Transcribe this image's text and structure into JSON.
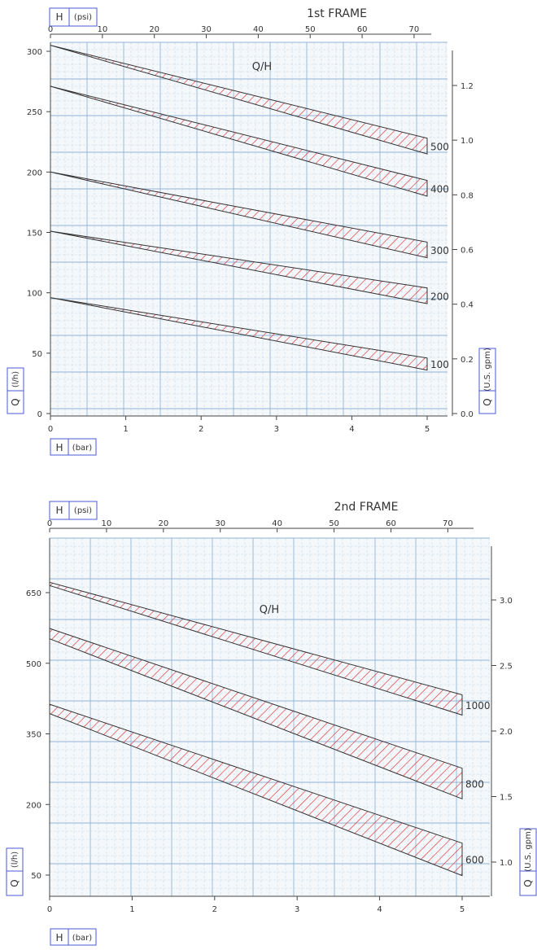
{
  "chart_data": [
    {
      "type": "line",
      "title": "1st FRAME",
      "annotation": "Q/H",
      "x_bar_label": "H",
      "x_bar_unit": "(bar)",
      "x_psi_label": "H",
      "x_psi_unit": "(psi)",
      "y_left_label": "Q",
      "y_left_unit": "(l/h)",
      "y_right_label": "Q",
      "y_right_unit": "(U.S. gpm)",
      "x_bar_ticks": [
        "0",
        "1",
        "2",
        "3",
        "4",
        "5"
      ],
      "x_psi_ticks": [
        "0",
        "10",
        "20",
        "30",
        "40",
        "50",
        "60",
        "70"
      ],
      "y_left_ticks": [
        "0",
        "50",
        "100",
        "150",
        "200",
        "250",
        "300"
      ],
      "y_right_ticks": [
        "0.0",
        "0.2",
        "0.4",
        "0.6",
        "0.8",
        "1.0",
        "1.2"
      ],
      "xlim": [
        0,
        5
      ],
      "ylim": [
        0,
        300
      ],
      "grid": true,
      "series": [
        {
          "name": "500",
          "upper": [
            [
              0,
              305
            ],
            [
              5,
              228
            ]
          ],
          "lower": [
            [
              0,
              305
            ],
            [
              5,
              215
            ]
          ]
        },
        {
          "name": "400",
          "upper": [
            [
              0,
              271
            ],
            [
              5,
              193
            ]
          ],
          "lower": [
            [
              0,
              271
            ],
            [
              5,
              180
            ]
          ]
        },
        {
          "name": "300",
          "upper": [
            [
              0,
              200
            ],
            [
              5,
              142
            ]
          ],
          "lower": [
            [
              0,
              200
            ],
            [
              5,
              129
            ]
          ]
        },
        {
          "name": "200",
          "upper": [
            [
              0,
              151
            ],
            [
              5,
              104
            ]
          ],
          "lower": [
            [
              0,
              151
            ],
            [
              5,
              91
            ]
          ]
        },
        {
          "name": "100",
          "upper": [
            [
              0,
              96
            ],
            [
              5,
              46
            ]
          ],
          "lower": [
            [
              0,
              96
            ],
            [
              5,
              36
            ]
          ]
        }
      ]
    },
    {
      "type": "line",
      "title": "2nd FRAME",
      "annotation": "Q/H",
      "x_bar_label": "H",
      "x_bar_unit": "(bar)",
      "x_psi_label": "H",
      "x_psi_unit": "(psi)",
      "y_left_label": "Q",
      "y_left_unit": "(l/h)",
      "y_right_label": "Q",
      "y_right_unit": "(U.S. gpm)",
      "x_bar_ticks": [
        "0",
        "1",
        "2",
        "3",
        "4",
        "5"
      ],
      "x_psi_ticks": [
        "0",
        "10",
        "20",
        "30",
        "40",
        "50",
        "60",
        "70"
      ],
      "y_left_ticks": [
        "50",
        "200",
        "350",
        "500",
        "650"
      ],
      "y_right_ticks": [
        "1.0",
        "1.5",
        "2.0",
        "2.5",
        "3.0"
      ],
      "xlim": [
        0,
        5
      ],
      "ylim": [
        50,
        650
      ],
      "grid": true,
      "series": [
        {
          "name": "1000",
          "upper": [
            [
              0,
              672
            ],
            [
              5,
              433
            ]
          ],
          "lower": [
            [
              0,
              665
            ],
            [
              5,
              390
            ]
          ]
        },
        {
          "name": "800",
          "upper": [
            [
              0,
              574
            ],
            [
              5,
              277
            ]
          ],
          "lower": [
            [
              0,
              552
            ],
            [
              5,
              212
            ]
          ]
        },
        {
          "name": "600",
          "upper": [
            [
              0,
              413
            ],
            [
              5,
              118
            ]
          ],
          "lower": [
            [
              0,
              393
            ],
            [
              5,
              49
            ]
          ]
        }
      ]
    }
  ],
  "colors": {
    "background": "#f5f8fb",
    "grid_fine": "#c4d7ea",
    "grid_major": "#8fb3d6",
    "axis": "#444444",
    "band_edge": "#333333",
    "hatch": "#e03030",
    "badge_border": "#4a5bd6"
  }
}
